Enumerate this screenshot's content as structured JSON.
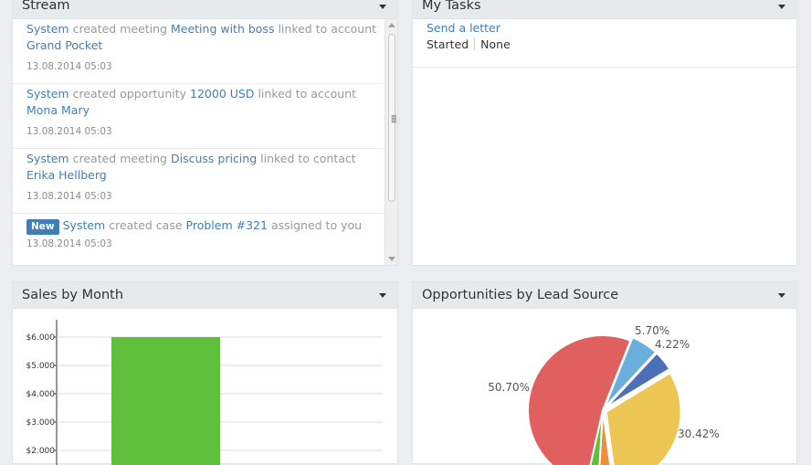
{
  "stream": {
    "title": "Stream",
    "items": [
      {
        "actor": "System",
        "action": "created meeting",
        "target": "Meeting with boss",
        "relation": "linked to account",
        "related": "Grand Pocket",
        "date": "13.08.2014 05:03"
      },
      {
        "actor": "System",
        "action": "created opportunity",
        "target": "12000 USD",
        "relation": "linked to account",
        "related": "Mona Mary",
        "date": "13.08.2014 05:03"
      },
      {
        "actor": "System",
        "action": "created meeting",
        "target": "Discuss pricing",
        "relation": "linked to contact",
        "related": "Erika Hellberg",
        "date": "13.08.2014 05:03"
      },
      {
        "badge": "New",
        "actor": "System",
        "action": "created case",
        "target": "Problem #321",
        "relation": "assigned to you",
        "date": "13.08.2014 05:03"
      }
    ]
  },
  "tasks": {
    "title": "My Tasks",
    "items": [
      {
        "name": "Send a letter",
        "status": "Started",
        "priority": "None"
      }
    ]
  },
  "sales": {
    "title": "Sales by Month"
  },
  "opportunities": {
    "title": "Opportunities by Lead Source"
  },
  "chart_data": [
    {
      "type": "bar",
      "title": "Sales by Month",
      "yticks": [
        "$2.000",
        "$3.000",
        "$4.000",
        "$5.000",
        "$6.000"
      ],
      "ytick_values": [
        2000,
        3000,
        4000,
        5000,
        6000
      ],
      "values": [
        6000
      ],
      "colors": [
        "#5dbf3a"
      ],
      "grid": true
    },
    {
      "type": "pie",
      "title": "Opportunities by Lead Source",
      "labels": [
        "5.70%",
        "4.22%",
        "30.42%",
        "",
        "",
        "50.70%"
      ],
      "values": [
        5.7,
        4.22,
        30.42,
        3.0,
        2.5,
        50.7
      ],
      "colors": [
        "#6aaedd",
        "#4d6fb7",
        "#ecc552",
        "#f08c3e",
        "#5dbf3a",
        "#e0605f"
      ]
    }
  ]
}
